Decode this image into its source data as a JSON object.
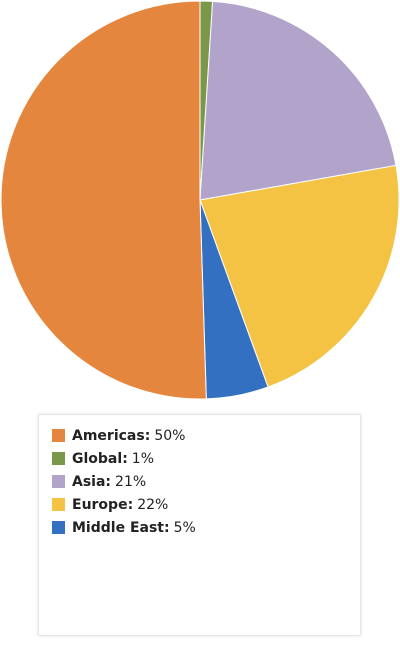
{
  "chart_data": {
    "type": "pie",
    "title": "",
    "legend_position": "bottom",
    "slices": [
      {
        "name": "Americas",
        "value": 50,
        "label": "50%",
        "color": "#e5863f"
      },
      {
        "name": "Global",
        "value": 1,
        "label": "1%",
        "color": "#79984a"
      },
      {
        "name": "Asia",
        "value": 21,
        "label": "21%",
        "color": "#b1a3c9"
      },
      {
        "name": "Europe",
        "value": 22,
        "label": "22%",
        "color": "#f4c343"
      },
      {
        "name": "Middle East",
        "value": 5,
        "label": "5%",
        "color": "#3470c2"
      }
    ]
  }
}
